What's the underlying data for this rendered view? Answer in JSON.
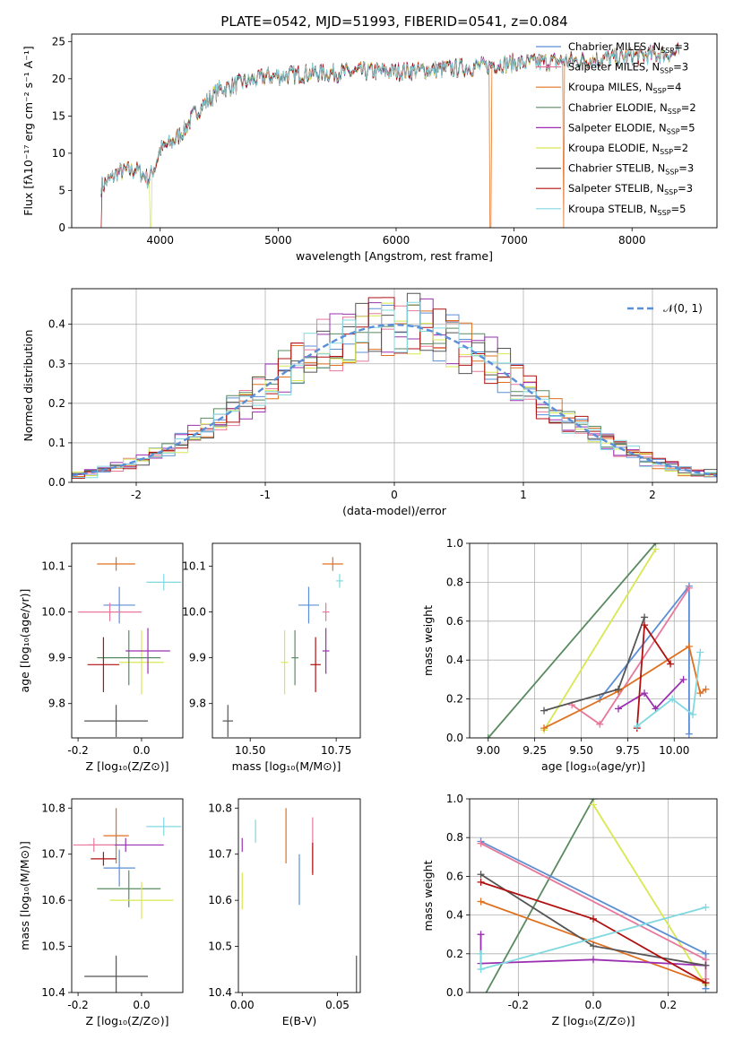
{
  "title": "PLATE=0542, MJD=51993, FIBERID=0541, z=0.084",
  "colors": {
    "Chabrier MILES": "#5a8fd8",
    "Salpeter MILES": "#e8789a",
    "Kroupa MILES": "#e07020",
    "Chabrier ELODIE": "#5a8a60",
    "Salpeter ELODIE": "#9a30b0",
    "Kroupa ELODIE": "#d8e850",
    "Chabrier STELIB": "#555555",
    "Salpeter STELIB": "#b01010",
    "Kroupa STELIB": "#80d8e0"
  },
  "chart_data": [
    {
      "id": "spectrum",
      "type": "line",
      "xlabel": "wavelength [Angstrom, rest frame]",
      "ylabel": "Flux [fλ10⁻¹⁷ erg cm⁻² s⁻¹ A⁻¹]",
      "xlim": [
        3250,
        8720
      ],
      "ylim": [
        0,
        26
      ],
      "xticks": [
        4000,
        5000,
        6000,
        7000,
        8000
      ],
      "yticks": [
        0,
        5,
        10,
        15,
        20,
        25
      ],
      "legend_position": "right",
      "legend": [
        {
          "name": "Chabrier MILES",
          "label": "Chabrier MILES, N",
          "sub": "SSP",
          "n": "=3"
        },
        {
          "name": "Salpeter MILES",
          "label": "Salpeter MILES, N",
          "sub": "SSP",
          "n": "=3"
        },
        {
          "name": "Kroupa MILES",
          "label": "Kroupa MILES, N",
          "sub": "SSP",
          "n": "=4"
        },
        {
          "name": "Chabrier ELODIE",
          "label": "Chabrier ELODIE, N",
          "sub": "SSP",
          "n": "=2"
        },
        {
          "name": "Salpeter ELODIE",
          "label": "Salpeter ELODIE, N",
          "sub": "SSP",
          "n": "=5"
        },
        {
          "name": "Kroupa ELODIE",
          "label": "Kroupa ELODIE, N",
          "sub": "SSP",
          "n": "=2"
        },
        {
          "name": "Chabrier STELIB",
          "label": "Chabrier STELIB, N",
          "sub": "SSP",
          "n": "=3"
        },
        {
          "name": "Salpeter STELIB",
          "label": "Salpeter STELIB, N",
          "sub": "SSP",
          "n": "=3"
        },
        {
          "name": "Kroupa STELIB",
          "label": "Kroupa STELIB, N",
          "sub": "SSP",
          "n": "=5"
        }
      ],
      "continuum": [
        [
          3500,
          5.5
        ],
        [
          3650,
          7.5
        ],
        [
          3800,
          7.8
        ],
        [
          3900,
          6.5
        ],
        [
          3950,
          8
        ],
        [
          4000,
          10.5
        ],
        [
          4100,
          11.5
        ],
        [
          4200,
          13
        ],
        [
          4300,
          15.5
        ],
        [
          4400,
          17
        ],
        [
          4500,
          18.5
        ],
        [
          4700,
          19.5
        ],
        [
          4900,
          20.3
        ],
        [
          5100,
          20.5
        ],
        [
          5300,
          20.8
        ],
        [
          5500,
          20.8
        ],
        [
          5800,
          21
        ],
        [
          6000,
          21
        ],
        [
          6300,
          21.2
        ],
        [
          6600,
          21.5
        ],
        [
          6900,
          22
        ],
        [
          7200,
          22.2
        ],
        [
          7600,
          22.5
        ],
        [
          8000,
          23
        ],
        [
          8400,
          23.5
        ]
      ],
      "dropouts": [
        {
          "series": "Salpeter STELIB",
          "x": 3500
        },
        {
          "series": "Kroupa ELODIE",
          "x": 3920
        },
        {
          "series": "Kroupa MILES",
          "x": 6800
        },
        {
          "series": "Kroupa MILES",
          "x": 7420
        }
      ]
    },
    {
      "id": "residuals",
      "type": "line",
      "xlabel": "(data-model)/error",
      "ylabel": "Normed distribution",
      "xlim": [
        -2.5,
        2.5
      ],
      "ylim": [
        0,
        0.49
      ],
      "xticks": [
        -2,
        -1,
        0,
        1,
        2
      ],
      "yticks": [
        0.0,
        0.1,
        0.2,
        0.3,
        0.4
      ],
      "grid": true,
      "legend_position": "top-right",
      "gaussian_label": "𝒩(0, 1)",
      "gaussian_color": "#5a8fd8"
    },
    {
      "id": "age-vs-Z",
      "type": "scatter",
      "xlabel": "Z [log₁₀(Z/Z⊙)]",
      "ylabel": "age  [log₁₀(age/yr)]",
      "xlim": [
        -0.22,
        0.13
      ],
      "ylim": [
        9.725,
        10.15
      ],
      "xticks": [
        -0.2,
        0.0
      ],
      "yticks": [
        9.8,
        9.9,
        10.0,
        10.1
      ],
      "points": [
        {
          "series": "Kroupa MILES",
          "x": -0.08,
          "y": 10.105,
          "xerr": 0.06,
          "yerr": 0.015
        },
        {
          "series": "Kroupa STELIB",
          "x": 0.07,
          "y": 10.065,
          "xerr": 0.055,
          "yerr": 0.018
        },
        {
          "series": "Chabrier MILES",
          "x": -0.07,
          "y": 10.015,
          "xerr": 0.05,
          "yerr": 0.04
        },
        {
          "series": "Salpeter MILES",
          "x": -0.1,
          "y": 10.0,
          "xerr": 0.1,
          "yerr": 0.02
        },
        {
          "series": "Kroupa ELODIE",
          "x": 0.0,
          "y": 9.89,
          "xerr": 0.07,
          "yerr": 0.07
        },
        {
          "series": "Chabrier ELODIE",
          "x": -0.04,
          "y": 9.9,
          "xerr": 0.1,
          "yerr": 0.06
        },
        {
          "series": "Salpeter ELODIE",
          "x": 0.02,
          "y": 9.915,
          "xerr": 0.07,
          "yerr": 0.05
        },
        {
          "series": "Salpeter STELIB",
          "x": -0.12,
          "y": 9.885,
          "xerr": 0.05,
          "yerr": 0.06
        },
        {
          "series": "Chabrier STELIB",
          "x": -0.08,
          "y": 9.762,
          "xerr": 0.1,
          "yerr": 0.035
        }
      ]
    },
    {
      "id": "age-vs-mass",
      "type": "scatter",
      "xlabel": "mass [log₁₀(M/M⊙)]",
      "ylabel": "",
      "xlim": [
        10.39,
        10.82
      ],
      "ylim": [
        9.725,
        10.15
      ],
      "xticks": [
        10.5,
        10.75
      ],
      "yticks": [
        9.8,
        9.9,
        10.0,
        10.1
      ],
      "points": [
        {
          "series": "Kroupa MILES",
          "x": 10.74,
          "y": 10.105,
          "xerr": 0.03,
          "yerr": 0.015
        },
        {
          "series": "Kroupa STELIB",
          "x": 10.76,
          "y": 10.068,
          "xerr": 0.01,
          "yerr": 0.015
        },
        {
          "series": "Chabrier MILES",
          "x": 10.67,
          "y": 10.015,
          "xerr": 0.03,
          "yerr": 0.04
        },
        {
          "series": "Salpeter MILES",
          "x": 10.72,
          "y": 10.0,
          "xerr": 0.01,
          "yerr": 0.02
        },
        {
          "series": "Kroupa ELODIE",
          "x": 10.6,
          "y": 9.89,
          "xerr": 0.01,
          "yerr": 0.07
        },
        {
          "series": "Chabrier ELODIE",
          "x": 10.63,
          "y": 9.9,
          "xerr": 0.01,
          "yerr": 0.06
        },
        {
          "series": "Salpeter ELODIE",
          "x": 10.72,
          "y": 9.915,
          "xerr": 0.01,
          "yerr": 0.05
        },
        {
          "series": "Salpeter STELIB",
          "x": 10.69,
          "y": 9.885,
          "xerr": 0.015,
          "yerr": 0.06
        },
        {
          "series": "Chabrier STELIB",
          "x": 10.435,
          "y": 9.762,
          "xerr": 0.015,
          "yerr": 0.035
        }
      ]
    },
    {
      "id": "weight-vs-age",
      "type": "line",
      "xlabel": "age  [log₁₀(age/yr)]",
      "ylabel": "mass weight",
      "xlim": [
        8.9,
        10.23
      ],
      "ylim": [
        0.0,
        1.0
      ],
      "xticks": [
        9.0,
        9.25,
        9.5,
        9.75,
        10.0
      ],
      "yticks": [
        0.0,
        0.2,
        0.4,
        0.6,
        0.8,
        1.0
      ],
      "grid": true,
      "series": [
        {
          "name": "Chabrier ELODIE",
          "x": [
            9.0,
            9.9
          ],
          "y": [
            0.0,
            1.0
          ]
        },
        {
          "name": "Kroupa ELODIE",
          "x": [
            9.3,
            9.9
          ],
          "y": [
            0.04,
            0.97
          ]
        },
        {
          "name": "Chabrier MILES",
          "x": [
            9.6,
            10.08,
            10.08
          ],
          "y": [
            0.2,
            0.78,
            0.02
          ]
        },
        {
          "name": "Salpeter MILES",
          "x": [
            9.45,
            9.6,
            10.08
          ],
          "y": [
            0.17,
            0.07,
            0.77
          ]
        },
        {
          "name": "Kroupa MILES",
          "x": [
            9.3,
            9.7,
            10.08,
            10.14,
            10.17
          ],
          "y": [
            0.05,
            0.24,
            0.47,
            0.23,
            0.25
          ]
        },
        {
          "name": "Salpeter ELODIE",
          "x": [
            9.7,
            9.84,
            9.9,
            10.05
          ],
          "y": [
            0.15,
            0.23,
            0.15,
            0.3
          ]
        },
        {
          "name": "Chabrier STELIB",
          "x": [
            9.3,
            9.7,
            9.84
          ],
          "y": [
            0.14,
            0.25,
            0.62
          ]
        },
        {
          "name": "Salpeter STELIB",
          "x": [
            9.8,
            9.84,
            9.98
          ],
          "y": [
            0.05,
            0.58,
            0.38
          ]
        },
        {
          "name": "Kroupa STELIB",
          "x": [
            9.8,
            9.99,
            10.1,
            10.14
          ],
          "y": [
            0.06,
            0.2,
            0.12,
            0.44
          ]
        }
      ]
    },
    {
      "id": "mass-vs-Z",
      "type": "scatter",
      "xlabel": "Z [log₁₀(Z/Z⊙)]",
      "ylabel": "mass [log₁₀(M/M⊙)]",
      "xlim": [
        -0.22,
        0.13
      ],
      "ylim": [
        10.4,
        10.82
      ],
      "xticks": [
        -0.2,
        0.0
      ],
      "yticks": [
        10.4,
        10.5,
        10.6,
        10.7,
        10.8
      ],
      "points": [
        {
          "series": "Kroupa STELIB",
          "x": 0.07,
          "y": 10.76,
          "xerr": 0.055,
          "yerr": 0.02
        },
        {
          "series": "Kroupa MILES",
          "x": -0.08,
          "y": 10.74,
          "xerr": 0.04,
          "yerr": 0.06
        },
        {
          "series": "Salpeter ELODIE",
          "x": -0.05,
          "y": 10.72,
          "xerr": 0.12,
          "yerr": 0.015
        },
        {
          "series": "Salpeter MILES",
          "x": -0.15,
          "y": 10.72,
          "xerr": 0.065,
          "yerr": 0.015
        },
        {
          "series": "Salpeter STELIB",
          "x": -0.12,
          "y": 10.69,
          "xerr": 0.04,
          "yerr": 0.015
        },
        {
          "series": "Chabrier MILES",
          "x": -0.07,
          "y": 10.67,
          "xerr": 0.05,
          "yerr": 0.04
        },
        {
          "series": "Chabrier ELODIE",
          "x": -0.04,
          "y": 10.625,
          "xerr": 0.1,
          "yerr": 0.04
        },
        {
          "series": "Kroupa ELODIE",
          "x": 0.0,
          "y": 10.6,
          "xerr": 0.1,
          "yerr": 0.04
        },
        {
          "series": "Chabrier STELIB",
          "x": -0.08,
          "y": 10.435,
          "xerr": 0.1,
          "yerr": 0.045
        }
      ]
    },
    {
      "id": "mass-vs-EBV",
      "type": "scatter",
      "xlabel": "E(B-V)",
      "ylabel": "",
      "xlim": [
        -0.002,
        0.062
      ],
      "ylim": [
        10.4,
        10.82
      ],
      "xticks": [
        0.0,
        0.05
      ],
      "yticks": [
        10.4,
        10.5,
        10.6,
        10.7,
        10.8
      ],
      "points": [
        {
          "series": "Kroupa STELIB",
          "x": 0.007,
          "y": 10.75,
          "xerr": 0,
          "yerr": 0.025
        },
        {
          "series": "Kroupa MILES",
          "x": 0.023,
          "y": 10.74,
          "xerr": 0,
          "yerr": 0.06
        },
        {
          "series": "Salpeter MILES",
          "x": 0.037,
          "y": 10.72,
          "xerr": 0,
          "yerr": 0.06
        },
        {
          "series": "Salpeter ELODIE",
          "x": 0.0,
          "y": 10.72,
          "xerr": 0,
          "yerr": 0.015
        },
        {
          "series": "Salpeter STELIB",
          "x": 0.037,
          "y": 10.69,
          "xerr": 0,
          "yerr": 0.035
        },
        {
          "series": "Chabrier MILES",
          "x": 0.03,
          "y": 10.645,
          "xerr": 0,
          "yerr": 0.055
        },
        {
          "series": "Kroupa ELODIE",
          "x": 0.0,
          "y": 10.62,
          "xerr": 0,
          "yerr": 0.04
        },
        {
          "series": "Chabrier STELIB",
          "x": 0.06,
          "y": 10.435,
          "xerr": 0,
          "yerr": 0.045
        }
      ]
    },
    {
      "id": "weight-vs-Z",
      "type": "line",
      "xlabel": "Z [log₁₀(Z/Z⊙)]",
      "ylabel": "mass weight",
      "xlim": [
        -0.33,
        0.33
      ],
      "ylim": [
        0.0,
        1.0
      ],
      "xticks": [
        -0.2,
        0.0,
        0.2
      ],
      "yticks": [
        0.0,
        0.2,
        0.4,
        0.6,
        0.8,
        1.0
      ],
      "grid": true,
      "series": [
        {
          "name": "Chabrier ELODIE",
          "x": [
            -0.3,
            0.0
          ],
          "y": [
            -0.05,
            1.0
          ]
        },
        {
          "name": "Kroupa ELODIE",
          "x": [
            0.0,
            0.3
          ],
          "y": [
            0.97,
            0.04
          ]
        },
        {
          "name": "Chabrier MILES",
          "x": [
            -0.3,
            0.3,
            0.3
          ],
          "y": [
            0.78,
            0.2,
            0.02
          ]
        },
        {
          "name": "Salpeter MILES",
          "x": [
            -0.3,
            0.3,
            0.3
          ],
          "y": [
            0.77,
            0.17,
            0.07
          ]
        },
        {
          "name": "Kroupa MILES",
          "x": [
            -0.3,
            0.3
          ],
          "y": [
            0.47,
            0.05
          ]
        },
        {
          "name": "Salpeter ELODIE",
          "x": [
            -0.3,
            -0.3,
            0.0,
            0.3
          ],
          "y": [
            0.3,
            0.15,
            0.17,
            0.14
          ]
        },
        {
          "name": "Chabrier STELIB",
          "x": [
            -0.3,
            0.0,
            0.3
          ],
          "y": [
            0.61,
            0.24,
            0.14
          ]
        },
        {
          "name": "Salpeter STELIB",
          "x": [
            -0.3,
            0.0,
            0.3
          ],
          "y": [
            0.57,
            0.38,
            0.05
          ]
        },
        {
          "name": "Kroupa STELIB",
          "x": [
            -0.3,
            -0.3,
            0.3
          ],
          "y": [
            0.2,
            0.12,
            0.44
          ]
        }
      ]
    }
  ]
}
